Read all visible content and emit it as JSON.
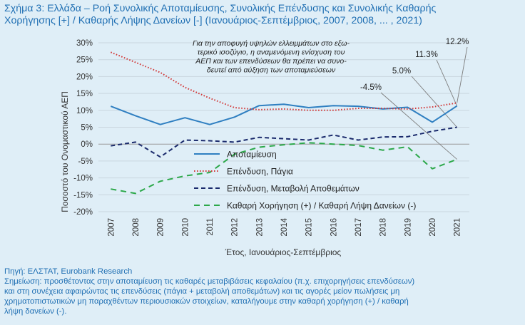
{
  "title_line1": "Σχήμα 3: Ελλάδα – Ροή Συνολικής Αποταμίευσης, Συνολικής Επένδυσης και Συνολικής Καθαρής",
  "title_line2": "Χορήγησης [+] / Καθαρής Λήψης Δανείων [-] (Ιανουάριος-Σεπτέμβριος, 2007, 2008, ... , 2021)",
  "source": "Πηγή: ΕΛΣΤΑΤ, Eurobank Research",
  "note_line1": "Σημείωση: προσθέτοντας στην αποταμίευση τις καθαρές μεταβιβάσεις κεφαλαίου (π.χ. επιχορηγήσεις επενδύσεων)",
  "note_line2": "και στη συνέχεια αφαιρώντας τις επενδύσεις (πάγια + μεταβολή αποθεμάτων) και τις αγορές μείον πωλήσεις μη",
  "note_line3": "χρηματοπιστωτικών μη παραχθέντων περιουσιακών στοιχείων, καταλήγουμε στην καθαρή χορήγηση (+) / καθαρή",
  "note_line4": "λήψη δανείων (-).",
  "chart_data": {
    "type": "line",
    "xlabel": "Έτος, Ιανουάριος-Σεπτέμβριος",
    "ylabel": "Ποσοστό του Ονομαστικού ΑΕΠ",
    "ylim": [
      -20,
      30
    ],
    "yticks": [
      -20,
      -15,
      -10,
      -5,
      0,
      5,
      10,
      15,
      20,
      25,
      30
    ],
    "ytick_labels": [
      "-20%",
      "-15%",
      "-10%",
      "-5%",
      "0%",
      "5%",
      "10%",
      "15%",
      "20%",
      "25%",
      "30%"
    ],
    "x": [
      "2007",
      "2008",
      "2009",
      "2010",
      "2011",
      "2012",
      "2013",
      "2014",
      "2015",
      "2016",
      "2017",
      "2018",
      "2019",
      "2020",
      "2021"
    ],
    "series": [
      {
        "name": "Αποταμίευση",
        "color": "#2f7fc1",
        "dash": "solid",
        "values": [
          11.2,
          8.4,
          5.8,
          7.8,
          5.8,
          8.0,
          11.4,
          11.8,
          10.8,
          11.4,
          11.2,
          10.4,
          10.9,
          6.5,
          11.3
        ]
      },
      {
        "name": "Επένδυση, Πάγια",
        "color": "#d23a3a",
        "dash": "dotted",
        "values": [
          27.2,
          24.2,
          21.2,
          16.8,
          13.6,
          10.8,
          10.2,
          10.4,
          10.0,
          10.0,
          10.6,
          10.6,
          10.4,
          11.0,
          12.2
        ]
      },
      {
        "name": "Επένδυση, Μεταβολή Αποθεμάτων",
        "color": "#1a2a6c",
        "dash": "dashed",
        "values": [
          -0.5,
          0.6,
          -3.8,
          1.2,
          1.0,
          0.6,
          2.0,
          1.6,
          1.2,
          2.7,
          1.2,
          2.1,
          2.2,
          3.8,
          5.0
        ]
      },
      {
        "name": "Καθαρή Χορήγηση (+) / Καθαρή Λήψη Δανείων (-)",
        "color": "#2ca84a",
        "dash": "longdash",
        "values": [
          -13.3,
          -14.6,
          -11.0,
          -9.4,
          -8.4,
          -3.0,
          -0.9,
          -0.2,
          0.4,
          0.0,
          -0.4,
          -1.8,
          -0.8,
          -7.3,
          -4.5
        ]
      }
    ],
    "annotation_text": [
      "Για την αποφυγή υψηλών ελλειμμάτων στο εξω-",
      "τερικό ισοζύγιο, η αναμενόμενη ενίσχυση του",
      "ΑΕΠ και των επενδύσεων θα πρέπει να συνο-",
      "δευτεί από αύξηση των αποταμιεύσεων"
    ],
    "callouts": [
      {
        "label": "12.2%",
        "series": 1
      },
      {
        "label": "11.3%",
        "series": 0
      },
      {
        "label": "5.0%",
        "series": 2
      },
      {
        "label": "-4.5%",
        "series": 3
      }
    ],
    "legend_position": "lower-center"
  }
}
